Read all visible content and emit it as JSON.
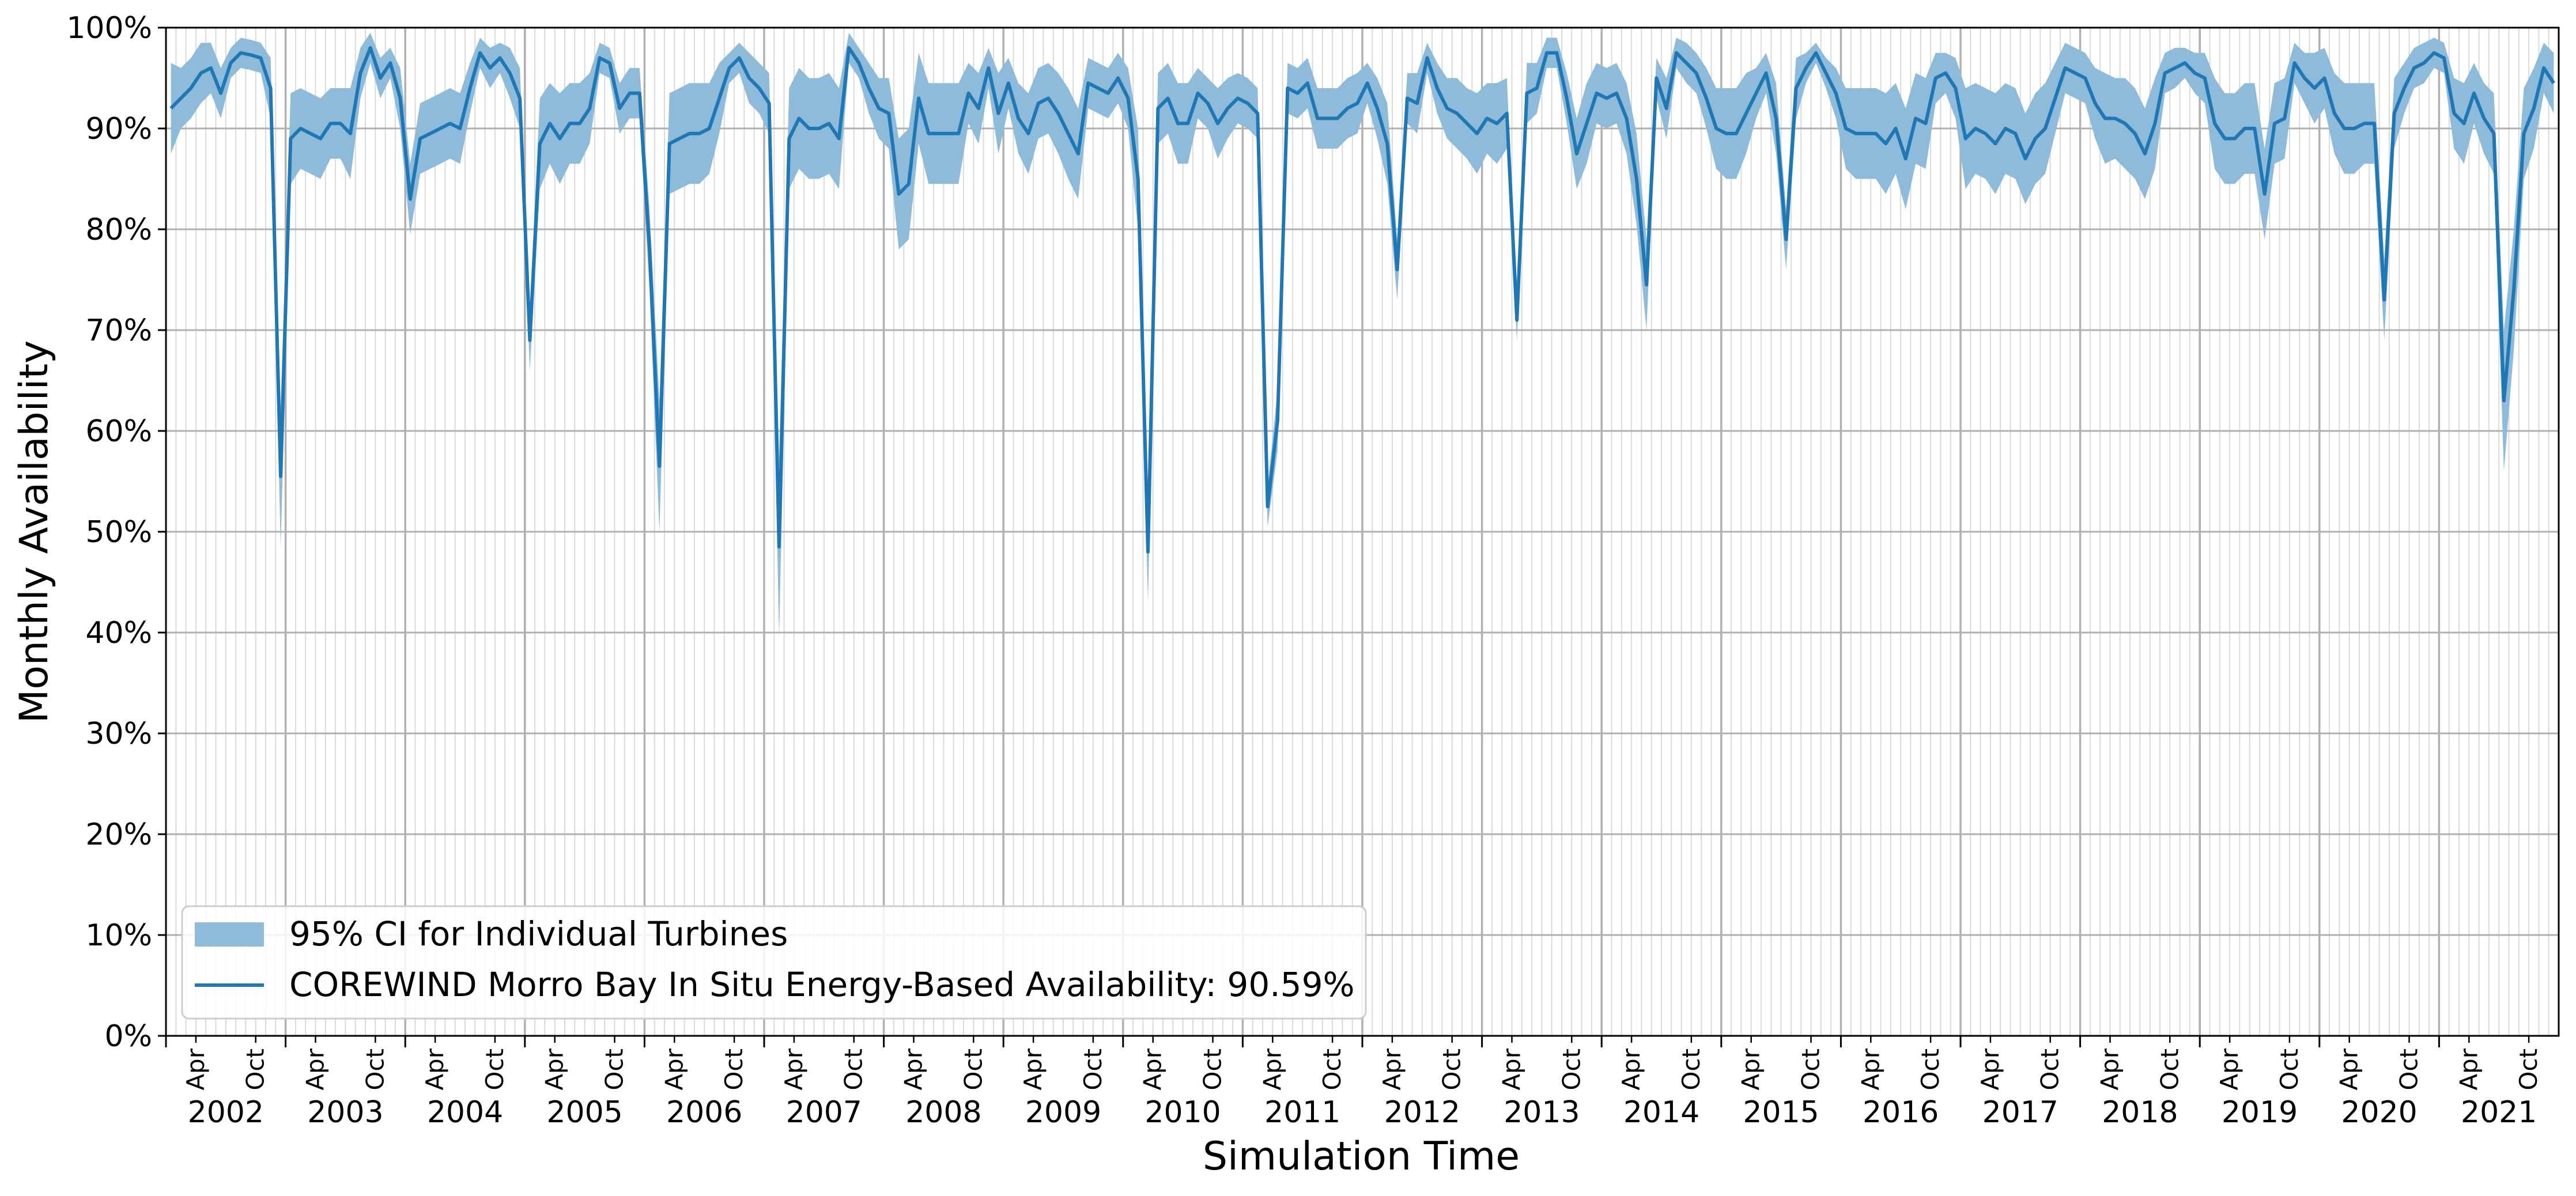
{
  "chart_data": {
    "type": "line",
    "xlabel": "Simulation Time",
    "ylabel": "Monthly Availability",
    "ylim": [
      0,
      100
    ],
    "y_ticks": [
      "0%",
      "10%",
      "20%",
      "30%",
      "40%",
      "50%",
      "60%",
      "70%",
      "80%",
      "90%",
      "100%"
    ],
    "x_range": [
      "2002-01",
      "2021-12"
    ],
    "month_tick_labels": [
      "Apr",
      "Oct"
    ],
    "years": [
      "2002",
      "2003",
      "2004",
      "2005",
      "2006",
      "2007",
      "2008",
      "2009",
      "2010",
      "2011",
      "2012",
      "2013",
      "2014",
      "2015",
      "2016",
      "2017",
      "2018",
      "2019",
      "2020",
      "2021"
    ],
    "grid": true,
    "legend_position": "lower-left",
    "colors": {
      "line": "#1f77b4",
      "band": "#8fbbdb",
      "grid": "#b0b0b0"
    },
    "series": [
      {
        "name": "COREWIND Morro Bay In Situ Energy-Based Availability: 90.59%",
        "kind": "line",
        "values": [
          92,
          93,
          94,
          95.5,
          96,
          93.5,
          96.5,
          97.5,
          97.3,
          97,
          94,
          55.5,
          89,
          90,
          89.5,
          89,
          90.5,
          90.5,
          89.5,
          95.5,
          98,
          95,
          96.5,
          93,
          83,
          89,
          89.5,
          90,
          90.5,
          90,
          94,
          97.5,
          96,
          97,
          95.5,
          93,
          69,
          88.5,
          90.5,
          89,
          90.5,
          90.5,
          92,
          97,
          96.5,
          92,
          93.5,
          93.5,
          78,
          56.5,
          88.5,
          89,
          89.5,
          89.5,
          90,
          93,
          96,
          97,
          95,
          94,
          92.5,
          48.5,
          89,
          91,
          90,
          90,
          90.5,
          89,
          98,
          96.5,
          94,
          92,
          91.5,
          83.5,
          84.5,
          93,
          89.5,
          89.5,
          89.5,
          89.5,
          93.5,
          92,
          96,
          91.5,
          94.5,
          91,
          89.5,
          92.5,
          93,
          91.5,
          89.5,
          87.5,
          94.5,
          94,
          93.5,
          95,
          93,
          85,
          48,
          92,
          93,
          90.5,
          90.5,
          93.5,
          92.5,
          90.5,
          92,
          93,
          92.5,
          91.5,
          52.5,
          61,
          94,
          93.5,
          94.5,
          91,
          91,
          91,
          92,
          92.5,
          94.5,
          92,
          88.5,
          76,
          93,
          92.5,
          97,
          94,
          92,
          91.5,
          90.5,
          89.5,
          91,
          90.5,
          91.5,
          71,
          93.5,
          94,
          97.5,
          97.5,
          93,
          87.5,
          90.5,
          93.5,
          93,
          93.5,
          91,
          85,
          74.5,
          95,
          92,
          97.5,
          96.5,
          95.5,
          93,
          90,
          89.5,
          89.5,
          91.5,
          93.5,
          95.5,
          91,
          79,
          94,
          96,
          97.5,
          95.5,
          93.5,
          90,
          89.5,
          89.5,
          89.5,
          88.5,
          90,
          87,
          91,
          90.5,
          95,
          95.5,
          94,
          89,
          90,
          89.5,
          88.5,
          90,
          89.5,
          87,
          89,
          90,
          93,
          96,
          95.5,
          95,
          92.5,
          91,
          91,
          90.5,
          89.5,
          87.5,
          90.5,
          95.5,
          96,
          96.5,
          95.5,
          95,
          90.5,
          89,
          89,
          90,
          90,
          83.5,
          90.5,
          91,
          96.5,
          95,
          94,
          95,
          91.5,
          90,
          90,
          90.5,
          90.5,
          73,
          91.5,
          94,
          96,
          96.5,
          97.5,
          97,
          91.5,
          90.5,
          93.5,
          91,
          89.5,
          63,
          74,
          89.5,
          92,
          96,
          94.5
        ]
      },
      {
        "name": "95% CI for Individual Turbines",
        "kind": "band",
        "half_width": [
          4.5,
          3,
          3,
          3,
          2.5,
          2.5,
          1.5,
          1.5,
          1.5,
          1.5,
          3,
          7,
          4.5,
          4,
          4,
          4,
          3.5,
          3.5,
          4.5,
          2.5,
          1.5,
          2,
          1.5,
          3,
          3.5,
          3.5,
          3.5,
          3.5,
          3.5,
          3.5,
          2.5,
          1.5,
          2,
          1.5,
          2.5,
          3,
          3,
          4.5,
          4,
          4.5,
          4,
          4,
          3.5,
          1.5,
          1.5,
          2.5,
          2.5,
          2.5,
          4,
          6.5,
          5,
          5,
          5,
          5,
          4.5,
          3.5,
          1.5,
          1.5,
          2.5,
          2.5,
          3,
          9,
          5,
          5,
          5,
          5,
          5,
          5,
          1.5,
          1.5,
          2.5,
          3,
          3.5,
          5.5,
          5.5,
          4.5,
          5,
          5,
          5,
          5,
          3,
          3.5,
          2,
          4,
          2.5,
          3.5,
          4,
          3.5,
          3.5,
          4,
          4.5,
          4.5,
          2.5,
          2.5,
          2.5,
          2.5,
          3,
          5,
          5,
          3.5,
          3.5,
          4,
          4,
          2.5,
          2.5,
          3.5,
          3,
          2.5,
          2.5,
          2.5,
          2,
          3,
          2.5,
          2.5,
          2.5,
          3,
          3,
          3,
          3,
          3,
          2,
          3,
          4,
          3,
          2.5,
          3,
          1.5,
          2.5,
          3,
          3.5,
          3.5,
          4,
          3.5,
          4,
          3.5,
          2,
          3,
          2.5,
          1.5,
          1.5,
          2.5,
          3.5,
          4,
          3,
          3,
          3,
          3.5,
          4.5,
          4.5,
          2,
          3,
          1.5,
          2,
          2,
          3,
          4,
          4.5,
          4.5,
          4,
          2.5,
          2,
          3.5,
          3,
          3,
          1.5,
          1,
          1.5,
          2.5,
          4,
          4.5,
          4.5,
          4.5,
          5,
          4.5,
          5,
          4.5,
          4.5,
          2.5,
          2,
          3,
          5,
          4.5,
          4.5,
          5,
          4.5,
          4.5,
          4.5,
          4.5,
          4.5,
          3.5,
          2.5,
          2.5,
          2.5,
          3.5,
          4.5,
          4,
          4.5,
          4.5,
          4.5,
          4.5,
          2,
          2,
          1.5,
          2,
          2.5,
          4.5,
          4.5,
          4.5,
          4.5,
          4.5,
          4.5,
          4,
          4,
          2,
          2.5,
          3.5,
          3,
          4,
          4.5,
          4.5,
          4,
          4,
          4,
          3.5,
          2.5,
          2,
          2,
          1.5,
          1.5,
          3.5,
          4,
          3,
          3.5,
          4,
          7,
          6,
          4.5,
          4,
          2.5,
          3
        ]
      }
    ]
  }
}
